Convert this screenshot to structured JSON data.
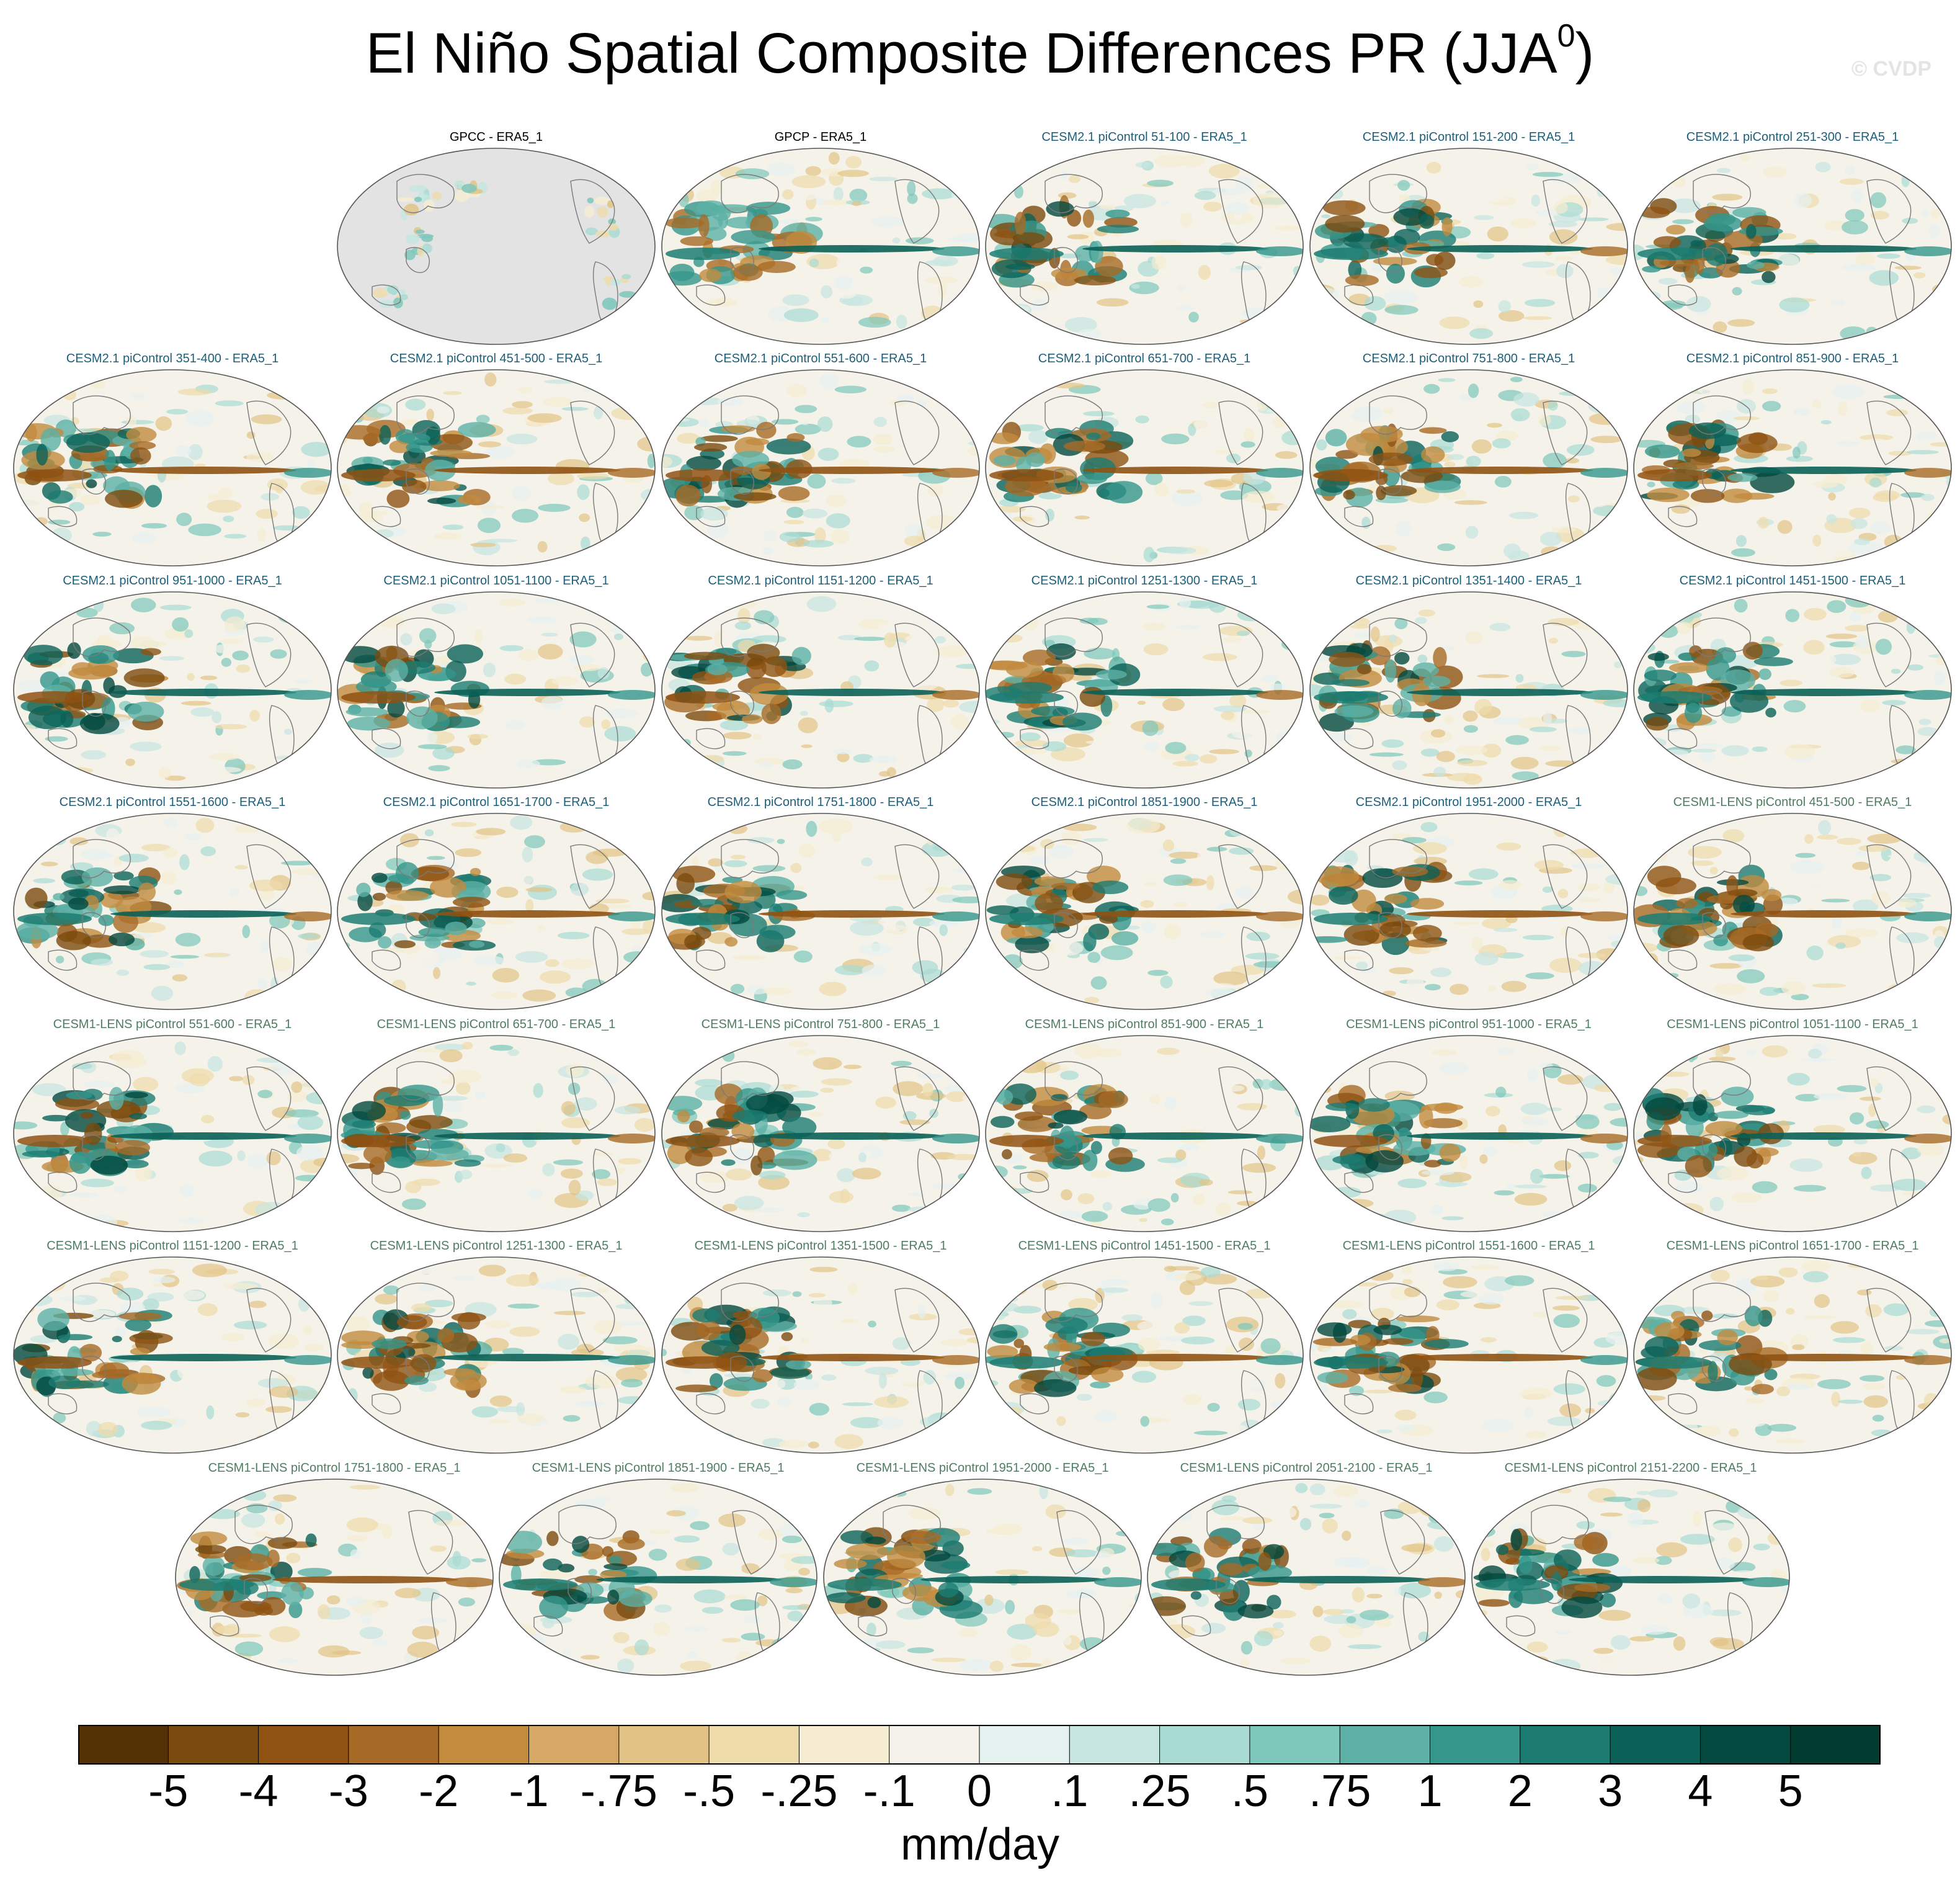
{
  "title": {
    "main": "El Niño Spatial Composite Differences PR (JJA",
    "sup": "0",
    "close": ")"
  },
  "copyright": "© CVDP",
  "panels": [
    {
      "label": "GPCC - ERA5_1",
      "group": "obs"
    },
    {
      "label": "GPCP - ERA5_1",
      "group": "obs"
    },
    {
      "label": "CESM2.1 piControl 51-100 - ERA5_1",
      "group": "c2"
    },
    {
      "label": "CESM2.1 piControl 151-200 - ERA5_1",
      "group": "c2"
    },
    {
      "label": "CESM2.1 piControl 251-300 - ERA5_1",
      "group": "c2"
    },
    {
      "label": "CESM2.1 piControl 351-400 - ERA5_1",
      "group": "c2"
    },
    {
      "label": "CESM2.1 piControl 451-500 - ERA5_1",
      "group": "c2"
    },
    {
      "label": "CESM2.1 piControl 551-600 - ERA5_1",
      "group": "c2"
    },
    {
      "label": "CESM2.1 piControl 651-700 - ERA5_1",
      "group": "c2"
    },
    {
      "label": "CESM2.1 piControl 751-800 - ERA5_1",
      "group": "c2"
    },
    {
      "label": "CESM2.1 piControl 851-900 - ERA5_1",
      "group": "c2"
    },
    {
      "label": "CESM2.1 piControl 951-1000 - ERA5_1",
      "group": "c2"
    },
    {
      "label": "CESM2.1 piControl 1051-1100 - ERA5_1",
      "group": "c2"
    },
    {
      "label": "CESM2.1 piControl 1151-1200 - ERA5_1",
      "group": "c2"
    },
    {
      "label": "CESM2.1 piControl 1251-1300 - ERA5_1",
      "group": "c2"
    },
    {
      "label": "CESM2.1 piControl 1351-1400 - ERA5_1",
      "group": "c2"
    },
    {
      "label": "CESM2.1 piControl 1451-1500 - ERA5_1",
      "group": "c2"
    },
    {
      "label": "CESM2.1 piControl 1551-1600 - ERA5_1",
      "group": "c2"
    },
    {
      "label": "CESM2.1 piControl 1651-1700 - ERA5_1",
      "group": "c2"
    },
    {
      "label": "CESM2.1 piControl 1751-1800 - ERA5_1",
      "group": "c2"
    },
    {
      "label": "CESM2.1 piControl 1851-1900 - ERA5_1",
      "group": "c2"
    },
    {
      "label": "CESM2.1 piControl 1951-2000 - ERA5_1",
      "group": "c2"
    },
    {
      "label": "CESM1-LENS piControl 451-500 - ERA5_1",
      "group": "c1"
    },
    {
      "label": "CESM1-LENS piControl 551-600 - ERA5_1",
      "group": "c1"
    },
    {
      "label": "CESM1-LENS piControl 651-700 - ERA5_1",
      "group": "c1"
    },
    {
      "label": "CESM1-LENS piControl 751-800 - ERA5_1",
      "group": "c1"
    },
    {
      "label": "CESM1-LENS piControl 851-900 - ERA5_1",
      "group": "c1"
    },
    {
      "label": "CESM1-LENS piControl 951-1000 - ERA5_1",
      "group": "c1"
    },
    {
      "label": "CESM1-LENS piControl 1051-1100 - ERA5_1",
      "group": "c1"
    },
    {
      "label": "CESM1-LENS piControl 1151-1200 - ERA5_1",
      "group": "c1"
    },
    {
      "label": "CESM1-LENS piControl 1251-1300 - ERA5_1",
      "group": "c1"
    },
    {
      "label": "CESM1-LENS piControl 1351-1500 - ERA5_1",
      "group": "c1"
    },
    {
      "label": "CESM1-LENS piControl 1451-1500 - ERA5_1",
      "group": "c1"
    },
    {
      "label": "CESM1-LENS piControl 1551-1600 - ERA5_1",
      "group": "c1"
    },
    {
      "label": "CESM1-LENS piControl 1651-1700 - ERA5_1",
      "group": "c1"
    },
    {
      "label": "CESM1-LENS piControl 1751-1800 - ERA5_1",
      "group": "c1"
    },
    {
      "label": "CESM1-LENS piControl 1851-1900 - ERA5_1",
      "group": "c1"
    },
    {
      "label": "CESM1-LENS piControl 1951-2000 - ERA5_1",
      "group": "c1"
    },
    {
      "label": "CESM1-LENS piControl 2051-2100 - ERA5_1",
      "group": "c1"
    },
    {
      "label": "CESM1-LENS piControl 2151-2200 - ERA5_1",
      "group": "c1"
    }
  ],
  "colorbar": {
    "levels": [
      "-5",
      "-4",
      "-3",
      "-2",
      "-1",
      "-.75",
      "-.5",
      "-.25",
      "-.1",
      "0",
      ".1",
      ".25",
      ".5",
      ".75",
      "1",
      "2",
      "3",
      "4",
      "5"
    ],
    "colors": [
      "#543005",
      "#7b4a0e",
      "#8f5213",
      "#a76a26",
      "#c28b3e",
      "#d5a965",
      "#e2c385",
      "#efdcab",
      "#f5ecd2",
      "#f5f2ea",
      "#e5f1ef",
      "#c7e6e1",
      "#a8dcd3",
      "#7ec7bb",
      "#5cb0a5",
      "#35968b",
      "#1c7c72",
      "#0b6157",
      "#03493f",
      "#003c30"
    ],
    "units": "mm/day"
  }
}
